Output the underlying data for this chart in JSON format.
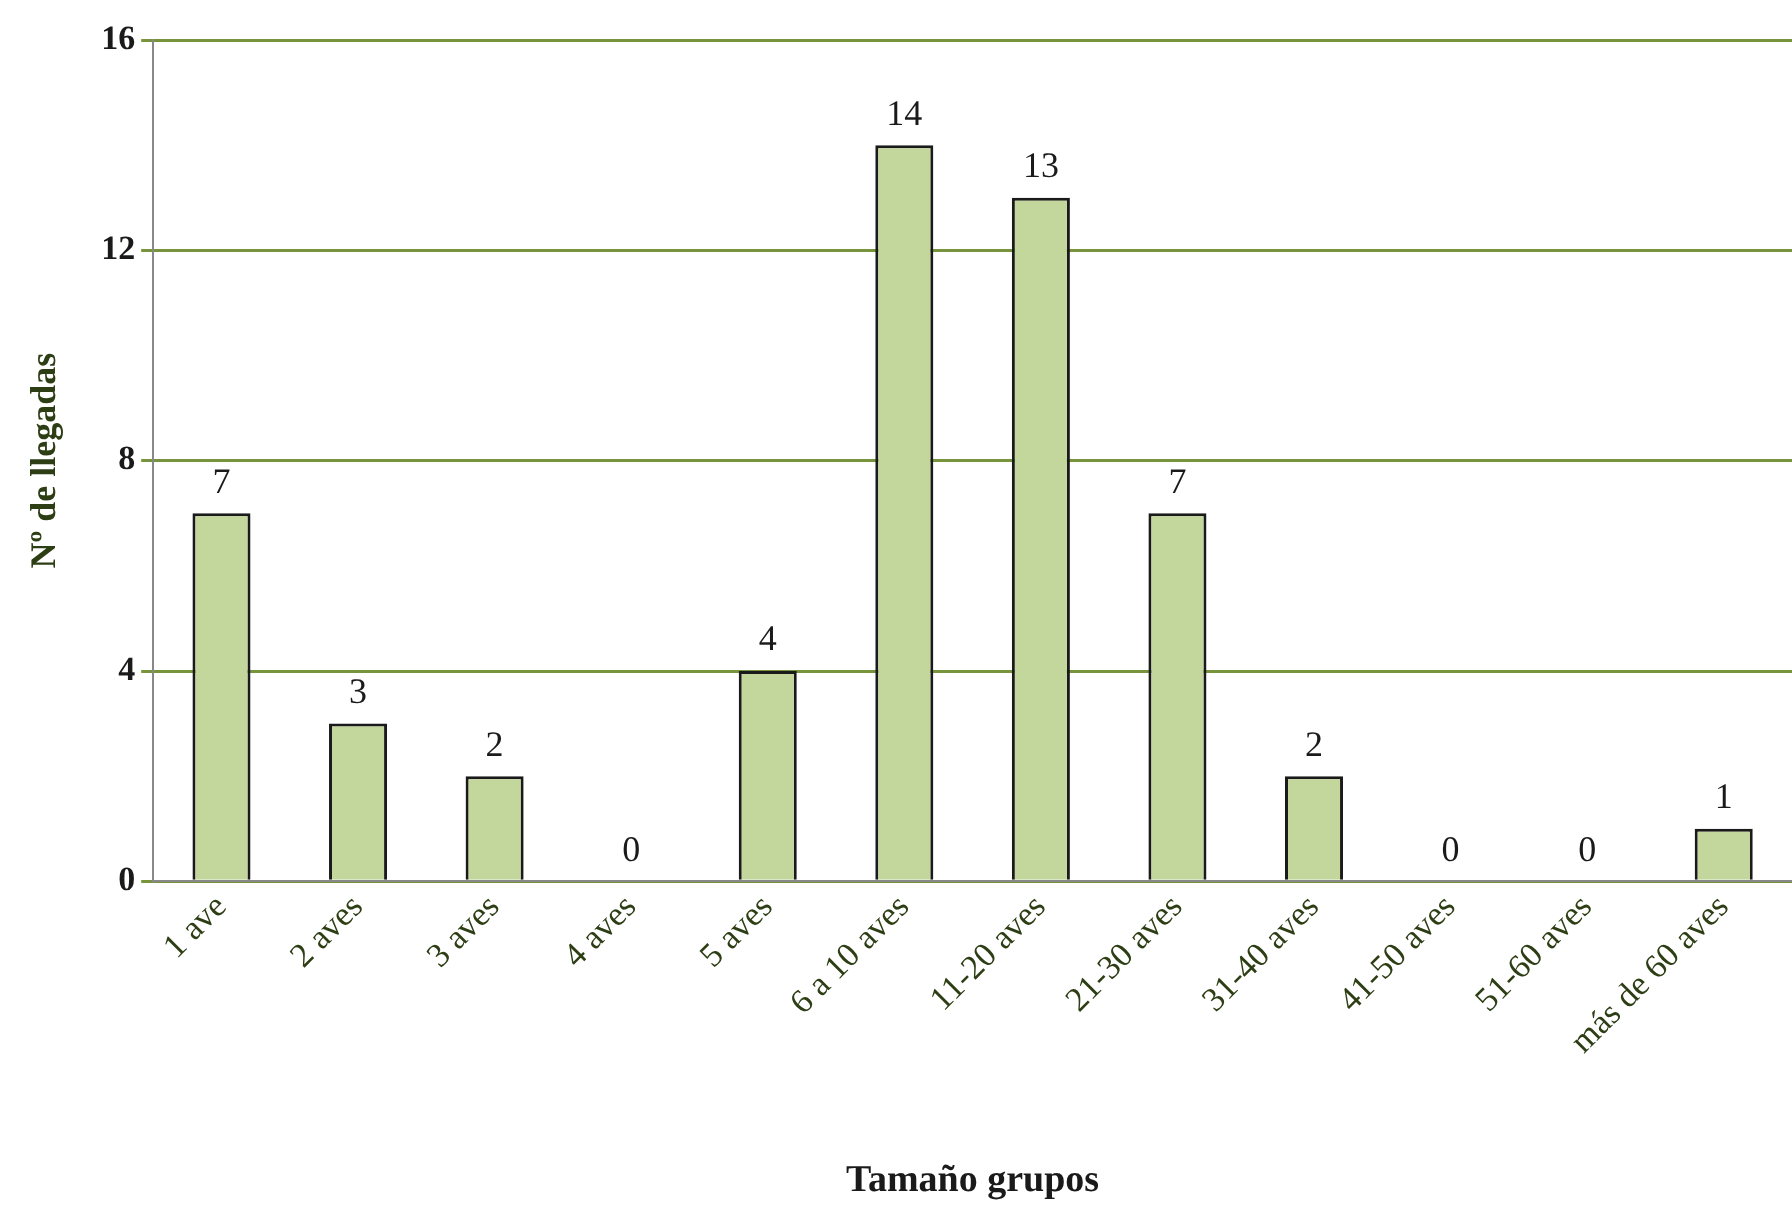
{
  "chart_data": {
    "type": "bar",
    "xlabel": "Tamaño grupos",
    "ylabel": "Nº de llegadas",
    "categories": [
      "1 ave",
      "2 aves",
      "3 aves",
      "4 aves",
      "5 aves",
      "6 a 10 aves",
      "11-20 aves",
      "21-30 aves",
      "31-40 aves",
      "41-50 aves",
      "51-60 aves",
      "más de 60 aves"
    ],
    "values": [
      7,
      3,
      2,
      0,
      4,
      14,
      13,
      7,
      2,
      0,
      0,
      1
    ],
    "color": "#c3d69b",
    "ylim": [
      0,
      16
    ],
    "yticks": [
      0,
      4,
      8,
      12,
      16
    ],
    "grid": "y",
    "legend": false,
    "data_labels": true
  }
}
